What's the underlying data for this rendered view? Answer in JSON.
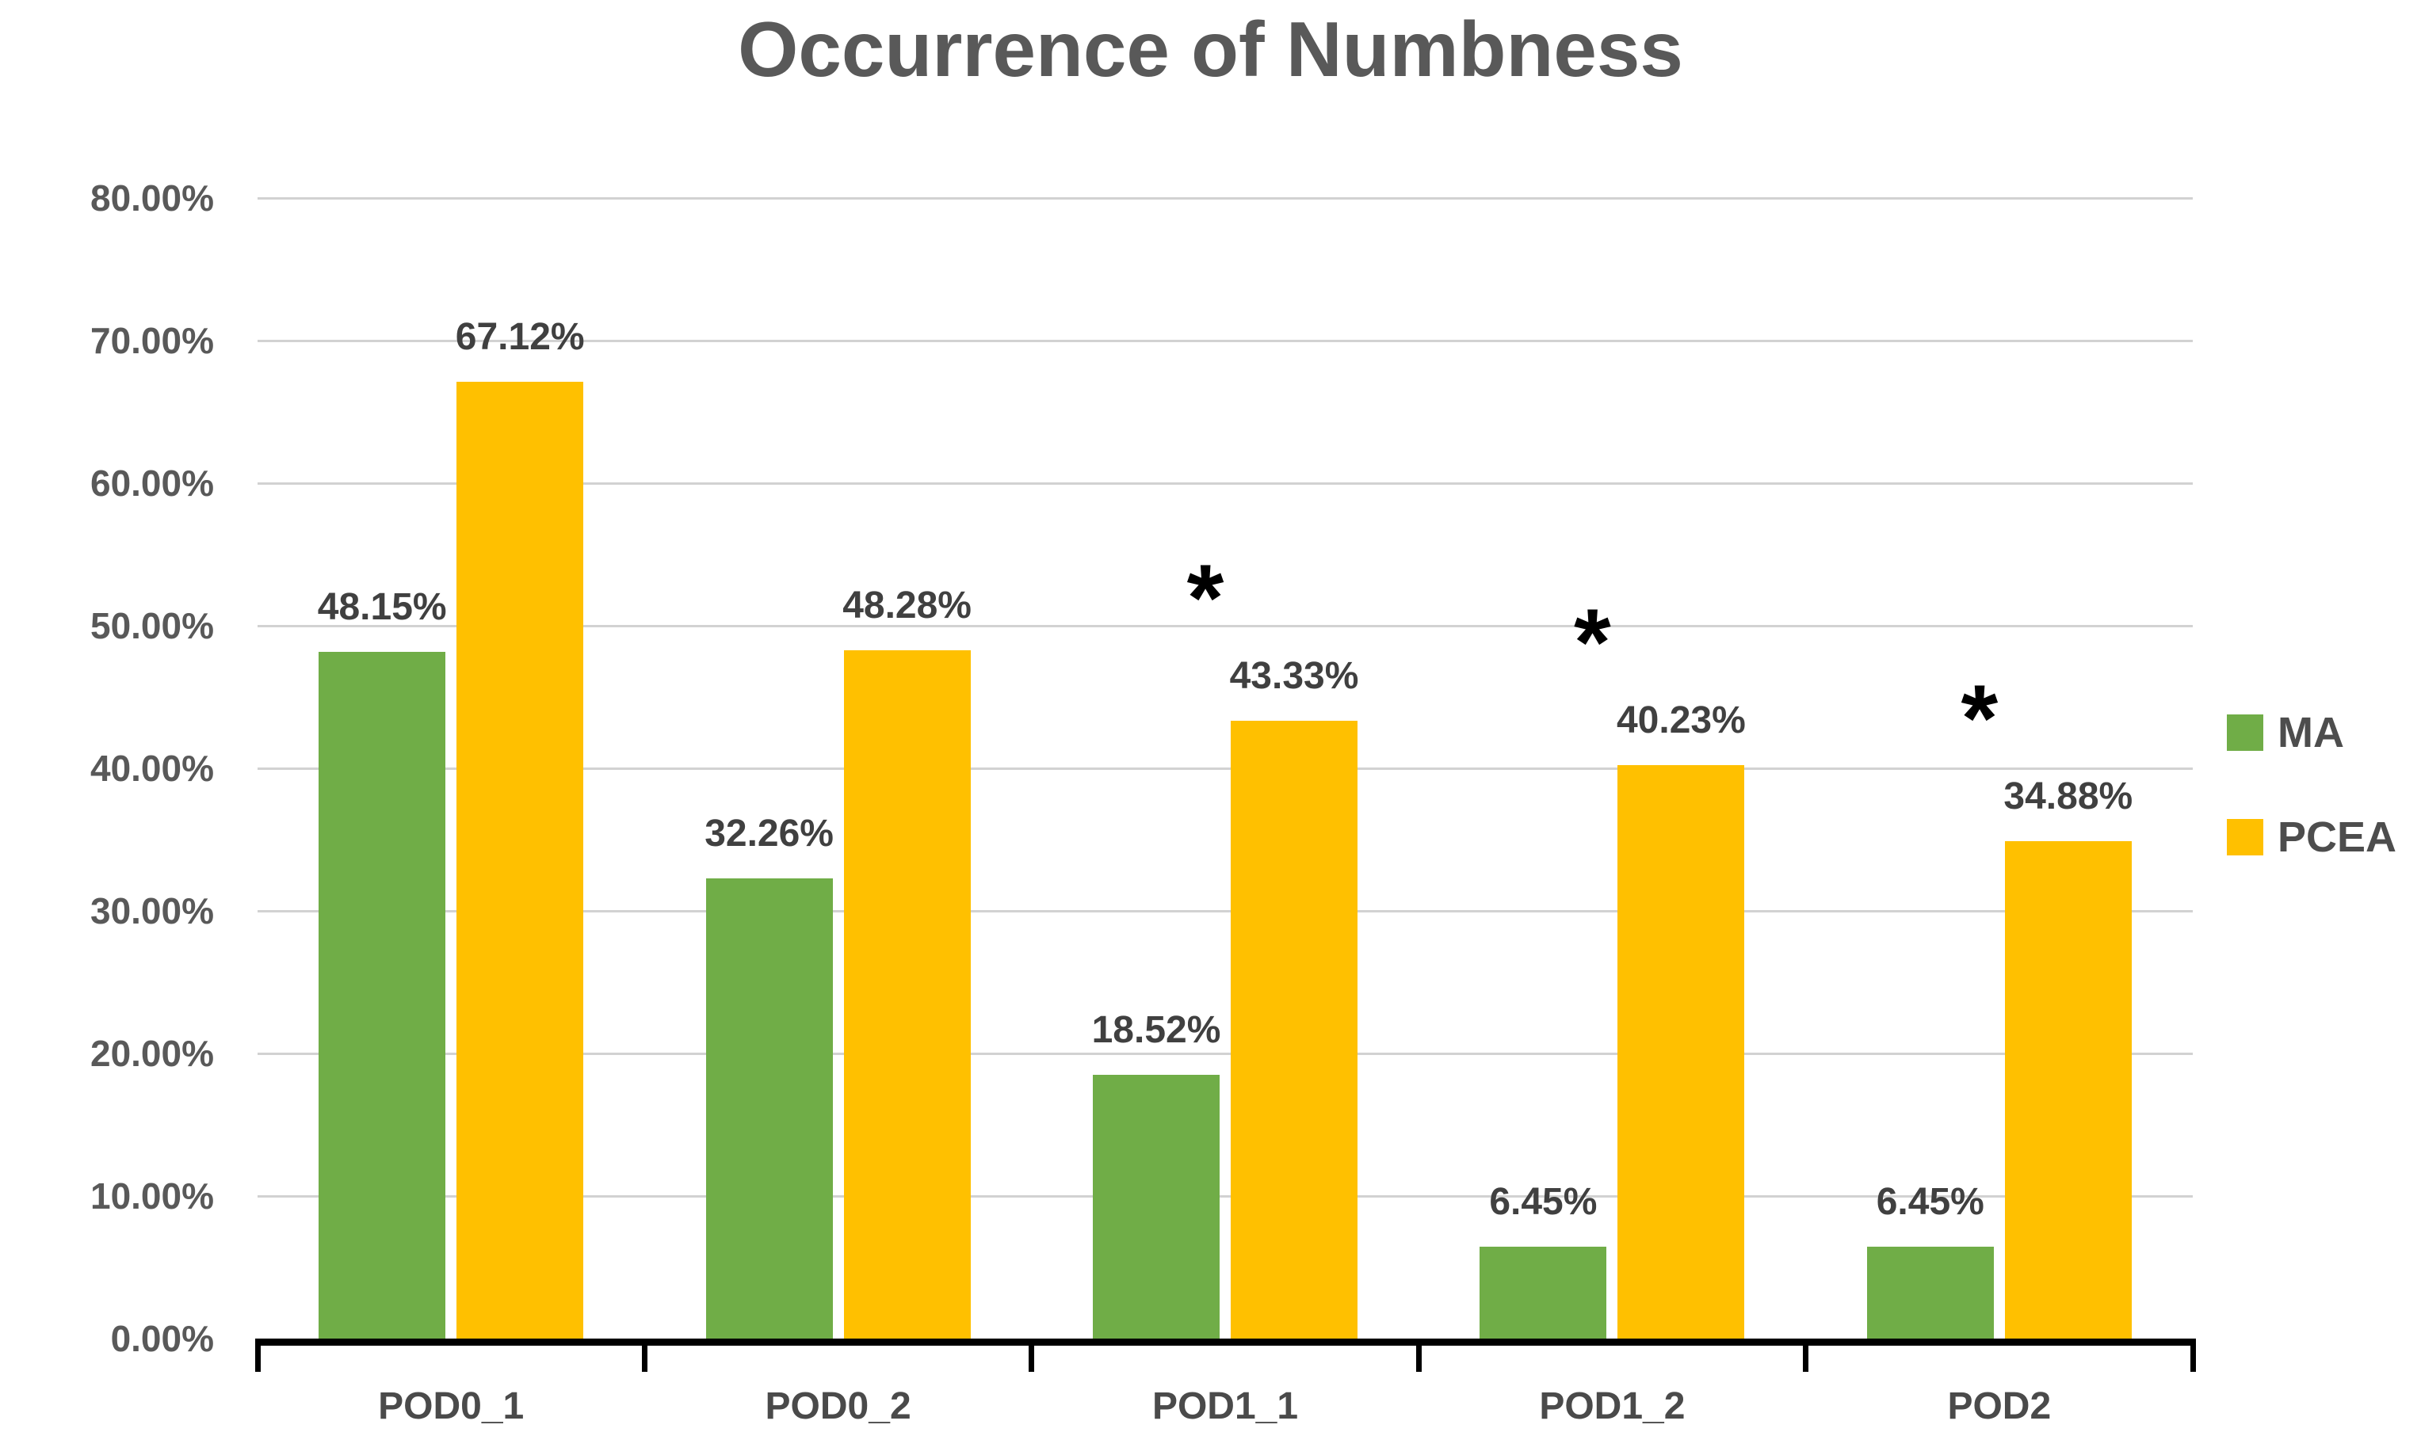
{
  "chart_data": {
    "type": "bar",
    "title": "Occurrence of Numbness",
    "categories": [
      "POD0_1",
      "POD0_2",
      "POD1_1",
      "POD1_2",
      "POD2"
    ],
    "series": [
      {
        "name": "MA",
        "color": "#70AD47",
        "values": [
          48.15,
          32.26,
          18.52,
          6.45,
          6.45
        ]
      },
      {
        "name": "PCEA",
        "color": "#FFC000",
        "values": [
          67.12,
          48.28,
          43.33,
          40.23,
          34.88
        ]
      }
    ],
    "data_labels": [
      [
        "48.15%",
        "32.26%",
        "18.52%",
        "6.45%",
        "6.45%"
      ],
      [
        "67.12%",
        "48.28%",
        "43.33%",
        "40.23%",
        "34.88%"
      ]
    ],
    "annotations": {
      "symbol": "*",
      "series": "PCEA",
      "categories": [
        "POD1_1",
        "POD1_2",
        "POD2"
      ]
    },
    "y_axis": {
      "min": 0,
      "max": 80,
      "step": 10,
      "ticks": [
        "0.00%",
        "10.00%",
        "20.00%",
        "30.00%",
        "40.00%",
        "50.00%",
        "60.00%",
        "70.00%",
        "80.00%"
      ]
    },
    "xlabel": "",
    "ylabel": "",
    "grid": true,
    "legend": {
      "position": "right",
      "entries": [
        {
          "label": "MA",
          "color": "#70AD47"
        },
        {
          "label": "PCEA",
          "color": "#FFC000"
        }
      ]
    },
    "colors": {
      "gridline": "#d2d2d2",
      "axis": "#000000",
      "title_text": "#595959",
      "tick_text": "#595959",
      "data_label_text": "#404040",
      "annotation_text": "#000000"
    }
  }
}
